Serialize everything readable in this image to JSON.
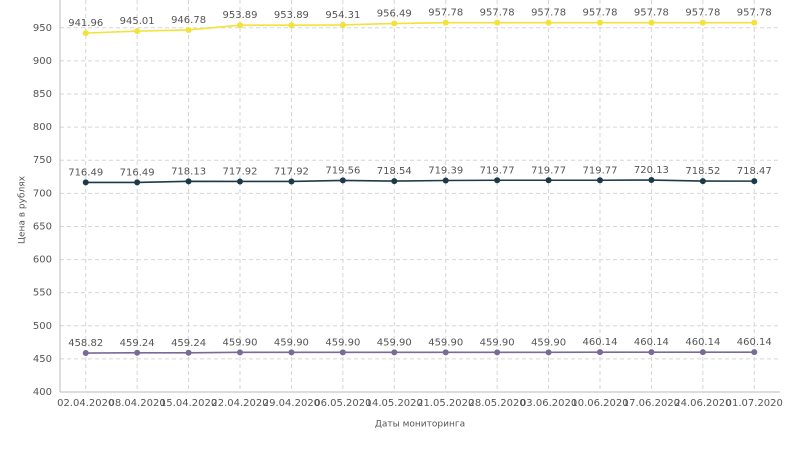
{
  "chart_data": {
    "type": "line",
    "y_label": "Цена в рублях",
    "x_label": "Даты мониторинга",
    "categories": [
      "02.04.2020",
      "08.04.2020",
      "15.04.2020",
      "22.04.2020",
      "29.04.2020",
      "06.05.2020",
      "14.05.2020",
      "21.05.2020",
      "28.05.2020",
      "03.06.2020",
      "10.06.2020",
      "17.06.2020",
      "24.06.2020",
      "01.07.2020"
    ],
    "series": [
      {
        "color": "#f2e23a",
        "values": [
          941.96,
          945.01,
          946.78,
          953.89,
          953.89,
          954.31,
          956.49,
          957.78,
          957.78,
          957.78,
          957.78,
          957.78,
          957.78,
          957.78
        ]
      },
      {
        "color": "#1d3a4a",
        "values": [
          716.49,
          716.49,
          718.13,
          717.92,
          717.92,
          719.56,
          718.54,
          719.39,
          719.77,
          719.77,
          719.77,
          720.13,
          718.52,
          718.47
        ]
      },
      {
        "color": "#7a6a98",
        "values": [
          458.82,
          459.24,
          459.24,
          459.9,
          459.9,
          459.9,
          459.9,
          459.9,
          459.9,
          459.9,
          460.14,
          460.14,
          460.14,
          460.14
        ],
        "value_labels": [
          "458.82",
          "459.24",
          "459.24",
          "459.90",
          "459.90",
          "459.90",
          "459.90",
          "459.90",
          "459.90",
          "459.90",
          "460.14",
          "460.14",
          "460.14",
          "460.14"
        ]
      }
    ],
    "ylim": [
      400,
      992
    ],
    "yticks": [
      400,
      450,
      500,
      550,
      600,
      650,
      700,
      750,
      800,
      850,
      900,
      950
    ],
    "grid": true
  }
}
